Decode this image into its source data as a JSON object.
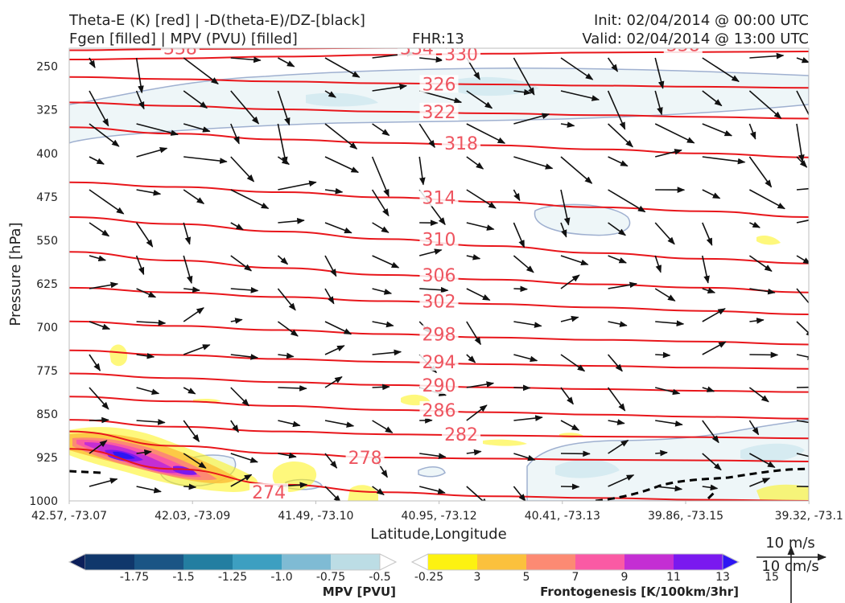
{
  "header": {
    "title_line1": "Theta-E (K) [red] | -D(theta-E)/DZ-[black]",
    "title_line2": "Fgen [filled] | MPV (PVU) [filled]",
    "fhr": "FHR:13",
    "init": "Init: 02/04/2014 @ 00:00 UTC",
    "valid": "Valid: 02/04/2014 @ 13:00 UTC"
  },
  "chart_data": {
    "type": "cross-section",
    "xlabel": "Latitude,Longitude",
    "ylabel": "Pressure [hPa]",
    "ylim": [
      1000,
      200
    ],
    "x_ticks": [
      "42.57, -73.07",
      "42.03, -73.09",
      "41.49, -73.10",
      "40.95, -73.12",
      "40.41, -73.13",
      "39.86, -73.15",
      "39.32, -73.1"
    ],
    "y_ticks": [
      250,
      325,
      400,
      475,
      550,
      625,
      700,
      775,
      850,
      925,
      1000
    ],
    "theta_e_contours": [
      {
        "label": "338",
        "values": [
          217,
          216,
          215,
          214,
          213,
          212,
          211,
          210
        ]
      },
      {
        "label": "334",
        "values": [
          222,
          220,
          219,
          218,
          216,
          215,
          214,
          213
        ]
      },
      {
        "label": "330",
        "values": [
          238,
          236,
          233,
          230,
          228,
          226,
          225,
          224
        ]
      },
      {
        "label": "326",
        "values": [
          268,
          272,
          276,
          279,
          281,
          283,
          285,
          287
        ]
      },
      {
        "label": "322",
        "values": [
          312,
          318,
          324,
          328,
          331,
          334,
          337,
          340
        ]
      },
      {
        "label": "318",
        "values": [
          355,
          366,
          376,
          382,
          386,
          393,
          400,
          407
        ]
      },
      {
        "label": "314",
        "values": [
          450,
          458,
          467,
          476,
          484,
          493,
          500,
          510
        ]
      },
      {
        "label": "310",
        "values": [
          510,
          522,
          535,
          548,
          560,
          572,
          582,
          590
        ]
      },
      {
        "label": "306",
        "values": [
          570,
          585,
          598,
          610,
          618,
          626,
          632,
          640
        ]
      },
      {
        "label": "302",
        "values": [
          632,
          640,
          648,
          655,
          660,
          666,
          672,
          678
        ]
      },
      {
        "label": "298",
        "values": [
          690,
          698,
          705,
          712,
          718,
          722,
          725,
          730
        ]
      },
      {
        "label": "294",
        "values": [
          740,
          748,
          755,
          760,
          764,
          767,
          770,
          772
        ]
      },
      {
        "label": "290",
        "values": [
          780,
          788,
          795,
          800,
          804,
          807,
          810,
          812
        ]
      },
      {
        "label": "286",
        "values": [
          820,
          828,
          836,
          843,
          847,
          851,
          855,
          858
        ]
      },
      {
        "label": "282",
        "values": [
          860,
          872,
          880,
          885,
          887,
          889,
          890,
          892
        ]
      },
      {
        "label": "278",
        "values": [
          880,
          905,
          918,
          925,
          927,
          929,
          930,
          932
        ]
      },
      {
        "label": "274",
        "values": [
          910,
          945,
          972,
          985,
          992,
          995,
          998,
          1000
        ]
      }
    ],
    "theta_e_label_positions": [
      {
        "label": "338",
        "x": 0.15,
        "p": 218
      },
      {
        "label": "334",
        "x": 0.47,
        "p": 218
      },
      {
        "label": "330",
        "x": 0.53,
        "p": 228
      },
      {
        "label": "338",
        "x": 0.83,
        "p": 212
      },
      {
        "label": "326",
        "x": 0.5,
        "p": 280
      },
      {
        "label": "322",
        "x": 0.5,
        "p": 328
      },
      {
        "label": "318",
        "x": 0.53,
        "p": 382
      },
      {
        "label": "314",
        "x": 0.5,
        "p": 476
      },
      {
        "label": "310",
        "x": 0.5,
        "p": 548
      },
      {
        "label": "306",
        "x": 0.5,
        "p": 610
      },
      {
        "label": "302",
        "x": 0.5,
        "p": 655
      },
      {
        "label": "298",
        "x": 0.5,
        "p": 712
      },
      {
        "label": "294",
        "x": 0.5,
        "p": 760
      },
      {
        "label": "290",
        "x": 0.5,
        "p": 800
      },
      {
        "label": "286",
        "x": 0.5,
        "p": 843
      },
      {
        "label": "282",
        "x": 0.53,
        "p": 885
      },
      {
        "label": "278",
        "x": 0.4,
        "p": 925
      },
      {
        "label": "274",
        "x": 0.27,
        "p": 985
      }
    ],
    "wind_scale": {
      "horizontal": "10 m/s",
      "vertical": "10 cm/s"
    },
    "colorbars": [
      {
        "label": "MPV [PVU]",
        "tick_labels": [
          "-1.75",
          "-1.5",
          "-1.25",
          "-1.0",
          "-0.75",
          "-0.5",
          "-0.25"
        ],
        "colors": [
          "#0c1f5a",
          "#10376b",
          "#1a5585",
          "#237ea1",
          "#3d9fc1",
          "#7fbbd4",
          "#bcdde5",
          "#ffffff"
        ]
      },
      {
        "label": "Frontogenesis [K/100km/3hr]",
        "tick_labels": [
          "3",
          "5",
          "7",
          "9",
          "11",
          "13",
          "15"
        ],
        "colors": [
          "#ffffff",
          "#fdf211",
          "#fbc13d",
          "#fc8a73",
          "#fa5aa4",
          "#c42ed3",
          "#7a19ef",
          "#2d16f3"
        ]
      }
    ]
  }
}
